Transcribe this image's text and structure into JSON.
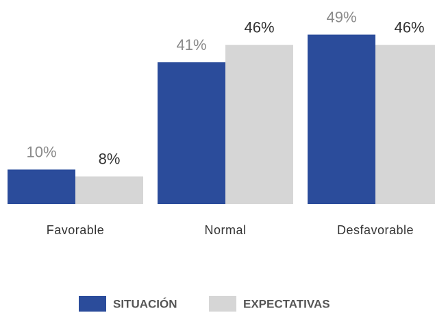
{
  "chart_data": {
    "type": "bar",
    "categories": [
      "Favorable",
      "Normal",
      "Desfavorable"
    ],
    "series": [
      {
        "name": "SITUACIÓN",
        "color": "#2b4c9b",
        "values": [
          10,
          41,
          49
        ],
        "value_labels": [
          "10%",
          "41%",
          "49%"
        ]
      },
      {
        "name": "EXPECTATIVAS",
        "color": "#d6d6d6",
        "values": [
          8,
          46,
          46
        ],
        "value_labels": [
          "8%",
          "46%",
          "46%"
        ]
      }
    ]
  }
}
